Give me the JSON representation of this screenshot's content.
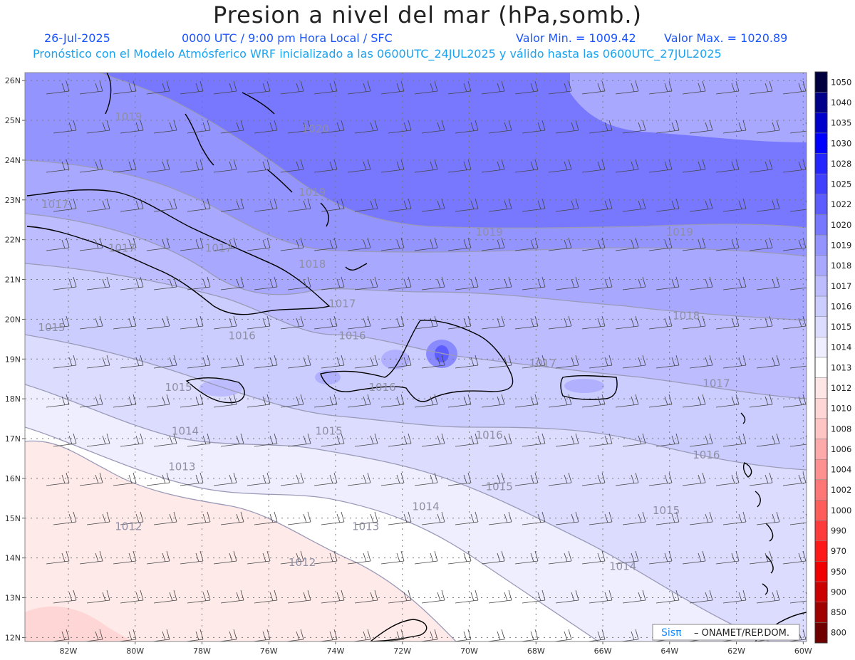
{
  "header": {
    "title": "Presion a nivel del mar (hPa,somb.)",
    "date": "26-Jul-2025",
    "time": "0000 UTC / 9:00 pm Hora Local / SFC",
    "min_label": "Valor Min. = 1009.42",
    "max_label": "Valor Max. = 1020.89",
    "forecast_line": "Pronóstico con el Modelo Atmósferico WRF inicializado a las 0600UTC_24JUL2025 y válido hasta las  0600UTC_27JUL2025"
  },
  "axes": {
    "lat_labels": [
      "26N",
      "25N",
      "24N",
      "23N",
      "22N",
      "21N",
      "20N",
      "19N",
      "18N",
      "17N",
      "16N",
      "15N",
      "14N",
      "13N",
      "12N"
    ],
    "lon_labels": [
      "82W",
      "80W",
      "78W",
      "76W",
      "74W",
      "72W",
      "70W",
      "68W",
      "66W",
      "64W",
      "62W",
      "60W"
    ]
  },
  "colorbar": {
    "levels": [
      "1050",
      "1040",
      "1035",
      "1030",
      "1028",
      "1025",
      "1022",
      "1020",
      "1019",
      "1018",
      "1017",
      "1016",
      "1015",
      "1014",
      "1013",
      "1012",
      "1010",
      "1008",
      "1006",
      "1004",
      "1002",
      "1000",
      "990",
      "970",
      "950",
      "900",
      "850",
      "800"
    ],
    "colors": [
      "#00003f",
      "#00008b",
      "#0000cd",
      "#0000ff",
      "#2525ff",
      "#4040ff",
      "#5c5cff",
      "#7878ff",
      "#9494ff",
      "#a8a8ff",
      "#bcbcff",
      "#cccdff",
      "#dcdcff",
      "#eeeeff",
      "#ffffff",
      "#ffe6e6",
      "#ffd6d6",
      "#ffc4c4",
      "#ffaaaa",
      "#ff9090",
      "#ff7676",
      "#ff5c5c",
      "#ff3a3a",
      "#ff1818",
      "#f00000",
      "#cc0000",
      "#a00000",
      "#700000"
    ]
  },
  "contours": [
    {
      "label": "1019",
      "lon": -80.2,
      "lat": 25.0
    },
    {
      "label": "1020",
      "lon": -74.6,
      "lat": 24.7
    },
    {
      "label": "1019",
      "lon": -74.7,
      "lat": 23.1
    },
    {
      "label": "1019",
      "lon": -69.4,
      "lat": 22.1
    },
    {
      "label": "1019",
      "lon": -63.7,
      "lat": 22.1
    },
    {
      "label": "1017",
      "lon": -82.4,
      "lat": 22.8
    },
    {
      "label": "1017",
      "lon": -80.4,
      "lat": 21.7
    },
    {
      "label": "1017",
      "lon": -77.5,
      "lat": 21.7
    },
    {
      "label": "1018",
      "lon": -74.7,
      "lat": 21.3
    },
    {
      "label": "1017",
      "lon": -73.8,
      "lat": 20.3
    },
    {
      "label": "1018",
      "lon": -63.5,
      "lat": 20.0
    },
    {
      "label": "1015",
      "lon": -82.5,
      "lat": 19.7
    },
    {
      "label": "1016",
      "lon": -76.8,
      "lat": 19.5
    },
    {
      "label": "1016",
      "lon": -73.5,
      "lat": 19.5
    },
    {
      "label": "1017",
      "lon": -67.8,
      "lat": 18.8
    },
    {
      "label": "1016",
      "lon": -72.6,
      "lat": 18.2
    },
    {
      "label": "1017",
      "lon": -62.6,
      "lat": 18.3
    },
    {
      "label": "1015",
      "lon": -78.7,
      "lat": 18.2
    },
    {
      "label": "1014",
      "lon": -78.5,
      "lat": 17.1
    },
    {
      "label": "1015",
      "lon": -74.2,
      "lat": 17.1
    },
    {
      "label": "1016",
      "lon": -69.4,
      "lat": 17.0
    },
    {
      "label": "1016",
      "lon": -62.9,
      "lat": 16.5
    },
    {
      "label": "1013",
      "lon": -78.6,
      "lat": 16.2
    },
    {
      "label": "1015",
      "lon": -69.1,
      "lat": 15.7
    },
    {
      "label": "1014",
      "lon": -71.3,
      "lat": 15.2
    },
    {
      "label": "1015",
      "lon": -64.1,
      "lat": 15.1
    },
    {
      "label": "1012",
      "lon": -80.2,
      "lat": 14.7
    },
    {
      "label": "1013",
      "lon": -73.1,
      "lat": 14.7
    },
    {
      "label": "1012",
      "lon": -75.0,
      "lat": 13.8
    },
    {
      "label": "1014",
      "lon": -65.4,
      "lat": 13.7
    }
  ],
  "credit": {
    "brand": "Sisπ",
    "text": "– ONAMET/REP.DOM."
  }
}
